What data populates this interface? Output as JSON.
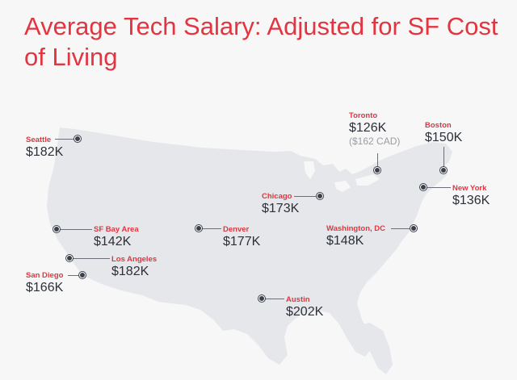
{
  "title": "Average Tech Salary: Adjusted for SF Cost of Living",
  "colors": {
    "accent": "#e2353f",
    "map_fill": "#e6e7ea",
    "text": "#2c3038"
  },
  "cities": [
    {
      "name": "Seattle",
      "salary": "$182K"
    },
    {
      "name": "SF Bay Area",
      "salary": "$142K"
    },
    {
      "name": "Los Angeles",
      "salary": "$182K"
    },
    {
      "name": "San Diego",
      "salary": "$166K"
    },
    {
      "name": "Denver",
      "salary": "$177K"
    },
    {
      "name": "Austin",
      "salary": "$202K"
    },
    {
      "name": "Chicago",
      "salary": "$173K"
    },
    {
      "name": "Toronto",
      "salary": "$126K",
      "note": "($162 CAD)"
    },
    {
      "name": "Boston",
      "salary": "$150K"
    },
    {
      "name": "New York",
      "salary": "$136K"
    },
    {
      "name": "Washington, DC",
      "salary": "$148K"
    }
  ]
}
